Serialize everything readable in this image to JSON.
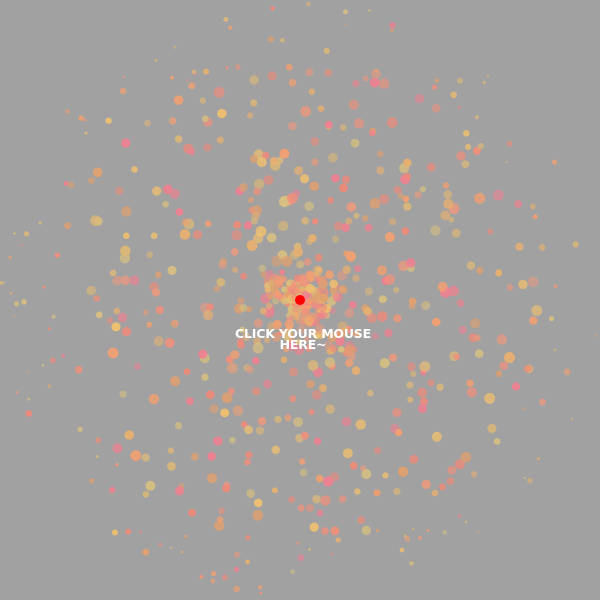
{
  "prompt": {
    "line1": "CLICK YOUR MOUSE",
    "line2": "HERE~"
  },
  "colors": {
    "background": "#a1a1a1",
    "cursor": "#ff0000",
    "prompt_text": "#ffffff",
    "particle_palette": [
      "#f08a7a",
      "#f4a070",
      "#e8b070",
      "#f0c070",
      "#d8c080",
      "#f08090",
      "#e89a80",
      "#dcb878",
      "#e0a070",
      "#f2907c"
    ]
  },
  "icons": {
    "cursor": "red-dot-cursor-icon"
  }
}
